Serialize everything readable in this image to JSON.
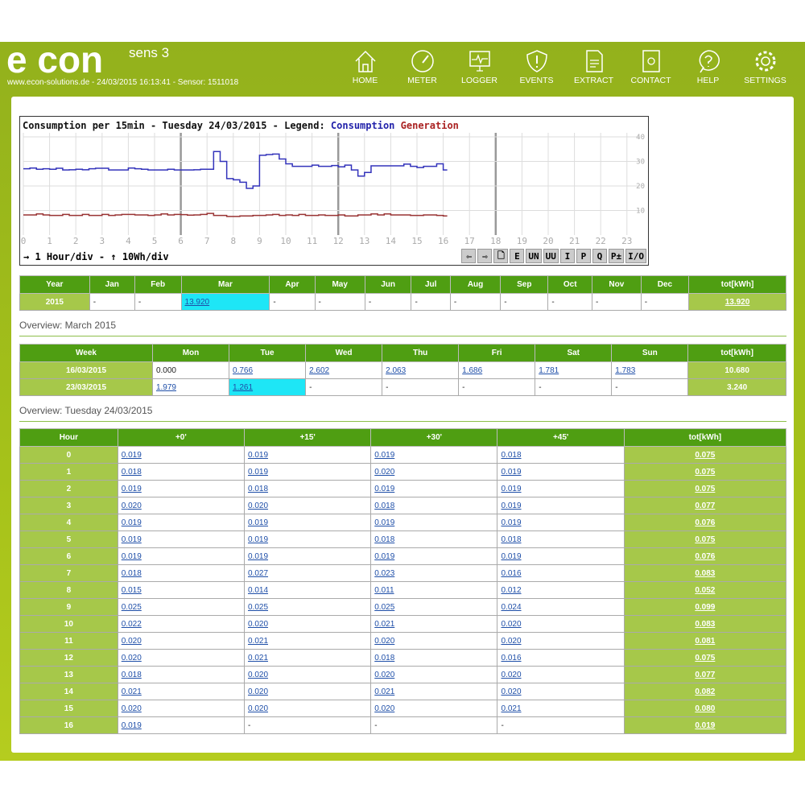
{
  "header": {
    "logo": "e con",
    "logo_sub": "sens 3",
    "status": "www.econ-solutions.de - 24/03/2015 16:13:41 - Sensor: 1511018",
    "nav": [
      {
        "label": "HOME",
        "icon": "home-icon"
      },
      {
        "label": "METER",
        "icon": "gauge-icon"
      },
      {
        "label": "LOGGER",
        "icon": "monitor-icon"
      },
      {
        "label": "EVENTS",
        "icon": "warning-shield-icon"
      },
      {
        "label": "EXTRACT",
        "icon": "csv-file-icon"
      },
      {
        "label": "CONTACT",
        "icon": "contact-book-icon"
      },
      {
        "label": "HELP",
        "icon": "help-icon"
      },
      {
        "label": "SETTINGS",
        "icon": "gear-icon"
      }
    ]
  },
  "chart": {
    "title": "Consumption per 15min - Tuesday 24/03/2015 - Legend:",
    "legend_consumption": "Consumption",
    "legend_generation": "Generation",
    "scale": "→ 1 Hour/div - ↑ 10Wh/div",
    "buttons": [
      "⇦",
      "⇨",
      "🗋",
      "E",
      "UN",
      "UU",
      "I",
      "P",
      "Q",
      "P±",
      "I/O"
    ]
  },
  "chart_data": {
    "type": "line",
    "xlim": [
      0,
      23
    ],
    "ylim": [
      0,
      40
    ],
    "x_ticks": [
      0,
      1,
      2,
      3,
      4,
      5,
      6,
      7,
      8,
      9,
      10,
      11,
      12,
      13,
      14,
      15,
      16,
      17,
      18,
      19,
      20,
      21,
      22,
      23
    ],
    "y_ticks": [
      10,
      20,
      30,
      40
    ],
    "grid": true,
    "x_step_hours": 0.25,
    "colors": {
      "Consumption": "#3333bb",
      "Generation": "#993333"
    },
    "series": [
      {
        "name": "Consumption",
        "values": [
          27,
          27.3,
          26.8,
          27,
          26.8,
          27.2,
          26.5,
          26.6,
          26.8,
          26.6,
          27,
          27.2,
          27.2,
          26.5,
          26.5,
          26.5,
          27.3,
          27,
          26.8,
          26.5,
          26.5,
          26.5,
          26.8,
          26.5,
          26.5,
          26.5,
          26.6,
          26.8,
          26.8,
          34,
          30,
          23,
          22.5,
          21.5,
          19,
          20,
          32.5,
          32.8,
          33,
          31,
          29,
          28,
          28,
          28,
          28.5,
          28,
          28,
          28.3,
          27.8,
          28.5,
          26.5,
          24,
          25.5,
          28.2,
          28.2,
          28.2,
          28.2,
          28.2,
          28.9,
          28,
          27.5,
          28,
          28,
          29,
          26.5
        ]
      },
      {
        "name": "Generation",
        "values": [
          8.2,
          8.2,
          8.6,
          8.2,
          8,
          8,
          8.4,
          8,
          8,
          8.4,
          8,
          8,
          8.4,
          8,
          8.2,
          8.4,
          8.4,
          8.2,
          8.2,
          8,
          8.2,
          8.6,
          8.2,
          8.4,
          8.3,
          8.1,
          8.2,
          8.4,
          8.8,
          8,
          8,
          7.6,
          7.6,
          7.8,
          7.8,
          8,
          8,
          8.2,
          8.4,
          8,
          8.2,
          8,
          8.4,
          8,
          8,
          8.2,
          8,
          8,
          8.2,
          7.8,
          7.8,
          8.2,
          8.2,
          8.6,
          8.2,
          8.6,
          8.2,
          8.2,
          8.2,
          8,
          8,
          8.2,
          8.2,
          8,
          7.8
        ]
      }
    ]
  },
  "year_table": {
    "headers": [
      "Year",
      "Jan",
      "Feb",
      "Mar",
      "Apr",
      "May",
      "Jun",
      "Jul",
      "Aug",
      "Sep",
      "Oct",
      "Nov",
      "Dec",
      "tot[kWh]"
    ],
    "row": [
      "2015",
      "-",
      "-",
      "13.920",
      "-",
      "-",
      "-",
      "-",
      "-",
      "-",
      "-",
      "-",
      "-",
      "13.920"
    ]
  },
  "month_title": "Overview: March 2015",
  "week_table": {
    "headers": [
      "Week",
      "Mon",
      "Tue",
      "Wed",
      "Thu",
      "Fri",
      "Sat",
      "Sun",
      "tot[kWh]"
    ],
    "rows": [
      [
        "16/03/2015",
        "0.000",
        "0.766",
        "2.602",
        "2.063",
        "1.686",
        "1.781",
        "1.783",
        "10.680"
      ],
      [
        "23/03/2015",
        "1.979",
        "1.261",
        "-",
        "-",
        "-",
        "-",
        "-",
        "3.240"
      ]
    ]
  },
  "day_title": "Overview: Tuesday 24/03/2015",
  "hour_table": {
    "headers": [
      "Hour",
      "+0'",
      "+15'",
      "+30'",
      "+45'",
      "tot[kWh]"
    ],
    "rows": [
      [
        "0",
        "0.019",
        "0.019",
        "0.019",
        "0.018",
        "0.075"
      ],
      [
        "1",
        "0.018",
        "0.019",
        "0.020",
        "0.019",
        "0.075"
      ],
      [
        "2",
        "0.019",
        "0.018",
        "0.019",
        "0.019",
        "0.075"
      ],
      [
        "3",
        "0.020",
        "0.020",
        "0.018",
        "0.019",
        "0.077"
      ],
      [
        "4",
        "0.019",
        "0.019",
        "0.019",
        "0.019",
        "0.076"
      ],
      [
        "5",
        "0.019",
        "0.019",
        "0.018",
        "0.018",
        "0.075"
      ],
      [
        "6",
        "0.019",
        "0.019",
        "0.019",
        "0.019",
        "0.076"
      ],
      [
        "7",
        "0.018",
        "0.027",
        "0.023",
        "0.016",
        "0.083"
      ],
      [
        "8",
        "0.015",
        "0.014",
        "0.011",
        "0.012",
        "0.052"
      ],
      [
        "9",
        "0.025",
        "0.025",
        "0.025",
        "0.024",
        "0.099"
      ],
      [
        "10",
        "0.022",
        "0.020",
        "0.021",
        "0.020",
        "0.083"
      ],
      [
        "11",
        "0.020",
        "0.021",
        "0.020",
        "0.020",
        "0.081"
      ],
      [
        "12",
        "0.020",
        "0.021",
        "0.018",
        "0.016",
        "0.075"
      ],
      [
        "13",
        "0.018",
        "0.020",
        "0.020",
        "0.020",
        "0.077"
      ],
      [
        "14",
        "0.021",
        "0.020",
        "0.021",
        "0.020",
        "0.082"
      ],
      [
        "15",
        "0.020",
        "0.020",
        "0.020",
        "0.021",
        "0.080"
      ],
      [
        "16",
        "0.019",
        "-",
        "-",
        "-",
        "0.019"
      ]
    ]
  }
}
